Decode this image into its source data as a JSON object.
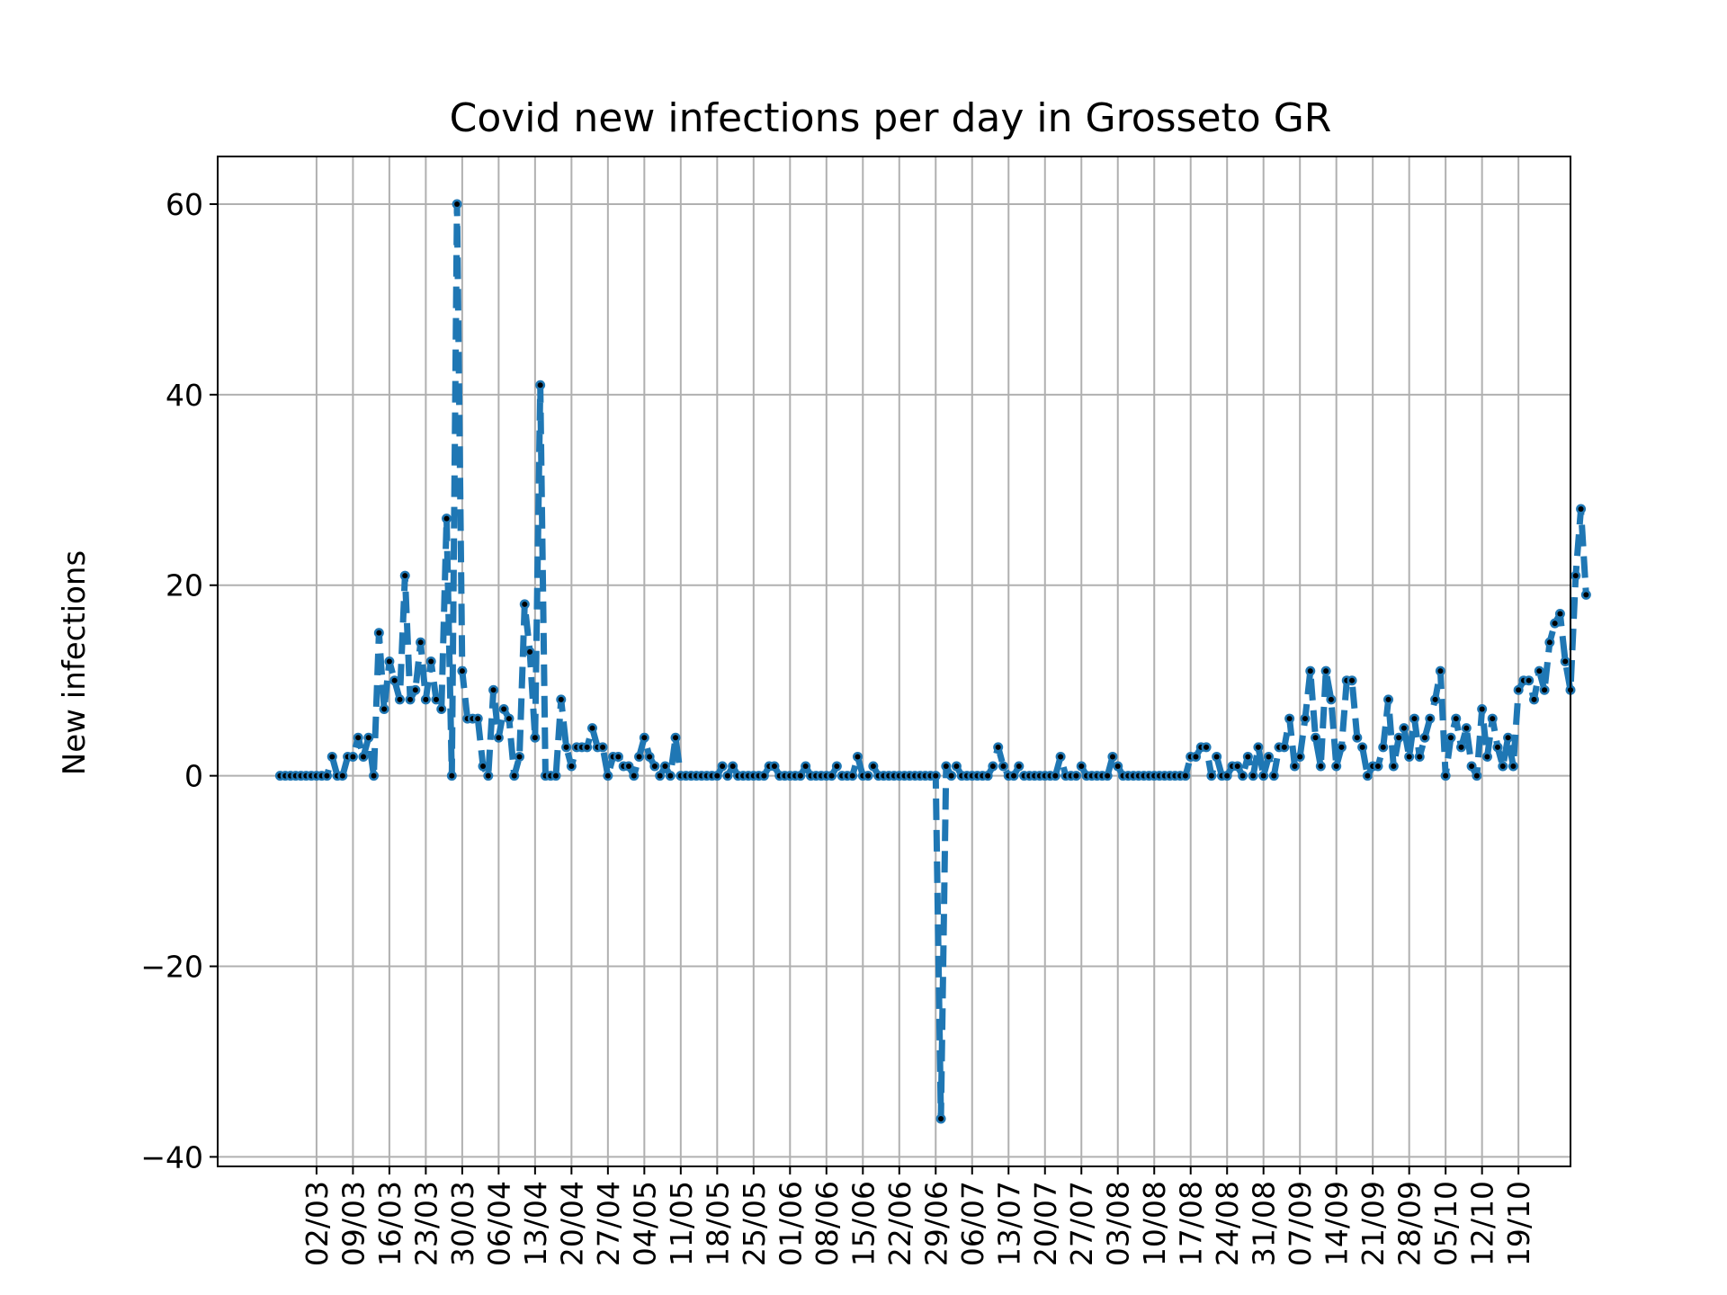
{
  "chart_data": {
    "type": "line",
    "title": "Covid new infections per day in Grosseto GR",
    "xlabel": "",
    "ylabel": "New infections",
    "ylim": [
      -41,
      65
    ],
    "y_ticks": [
      -40,
      -20,
      0,
      20,
      40,
      60
    ],
    "y_tick_labels": [
      "−40",
      "−20",
      "0",
      "20",
      "40",
      "60"
    ],
    "x_tick_labels": [
      "02/03",
      "09/03",
      "16/03",
      "23/03",
      "30/03",
      "06/04",
      "13/04",
      "20/04",
      "27/04",
      "04/05",
      "11/05",
      "18/05",
      "25/05",
      "01/06",
      "08/06",
      "15/06",
      "22/06",
      "29/06",
      "06/07",
      "13/07",
      "20/07",
      "27/07",
      "03/08",
      "10/08",
      "17/08",
      "24/08",
      "31/08",
      "07/09",
      "14/09",
      "21/09",
      "28/09",
      "05/10",
      "12/10",
      "19/10"
    ],
    "x_tick_dates": [
      "2020-03-02",
      "2020-03-09",
      "2020-03-16",
      "2020-03-23",
      "2020-03-30",
      "2020-04-06",
      "2020-04-13",
      "2020-04-20",
      "2020-04-27",
      "2020-05-04",
      "2020-05-11",
      "2020-05-18",
      "2020-05-25",
      "2020-06-01",
      "2020-06-08",
      "2020-06-15",
      "2020-06-22",
      "2020-06-29",
      "2020-07-06",
      "2020-07-13",
      "2020-07-20",
      "2020-07-27",
      "2020-08-03",
      "2020-08-10",
      "2020-08-17",
      "2020-08-24",
      "2020-08-31",
      "2020-09-07",
      "2020-09-14",
      "2020-09-21",
      "2020-09-28",
      "2020-10-05",
      "2020-10-12",
      "2020-10-19"
    ],
    "x_range": [
      "2020-02-12",
      "2020-10-29"
    ],
    "x_start": "2020-02-24",
    "grid": true,
    "series": [
      {
        "name": "",
        "color": "#1f77b4",
        "line_style": "dashed",
        "marker_color": "#000000",
        "values": [
          0,
          0,
          0,
          0,
          0,
          0,
          0,
          0,
          0,
          0,
          2,
          0,
          0,
          2,
          2,
          4,
          2,
          4,
          0,
          15,
          7,
          12,
          10,
          8,
          21,
          8,
          9,
          14,
          8,
          12,
          8,
          7,
          27,
          0,
          60,
          11,
          6,
          6,
          6,
          1,
          0,
          9,
          4,
          7,
          6,
          0,
          2,
          18,
          13,
          4,
          41,
          0,
          0,
          0,
          8,
          3,
          1,
          3,
          3,
          3,
          5,
          3,
          3,
          0,
          2,
          2,
          1,
          1,
          0,
          2,
          4,
          2,
          1,
          0,
          1,
          0,
          4,
          0,
          0,
          0,
          0,
          0,
          0,
          0,
          0,
          1,
          0,
          1,
          0,
          0,
          0,
          0,
          0,
          0,
          1,
          1,
          0,
          0,
          0,
          0,
          0,
          1,
          0,
          0,
          0,
          0,
          0,
          1,
          0,
          0,
          0,
          2,
          0,
          0,
          1,
          0,
          0,
          0,
          0,
          0,
          0,
          0,
          0,
          0,
          0,
          0,
          0,
          -36,
          1,
          0,
          1,
          0,
          0,
          0,
          0,
          0,
          0,
          1,
          3,
          1,
          0,
          0,
          1,
          0,
          0,
          0,
          0,
          0,
          0,
          0,
          2,
          0,
          0,
          0,
          1,
          0,
          0,
          0,
          0,
          0,
          2,
          1,
          0,
          0,
          0,
          0,
          0,
          0,
          0,
          0,
          0,
          0,
          0,
          0,
          0,
          2,
          2,
          3,
          3,
          0,
          2,
          0,
          0,
          1,
          1,
          0,
          2,
          0,
          3,
          0,
          2,
          0,
          3,
          3,
          6,
          1,
          2,
          6,
          11,
          4,
          1,
          11,
          8,
          1,
          3,
          10,
          10,
          4,
          3,
          0,
          1,
          1,
          3,
          8,
          1,
          4,
          5,
          2,
          6,
          2,
          4,
          6,
          8,
          11,
          0,
          4,
          6,
          3,
          5,
          1,
          0,
          7,
          2,
          6,
          3,
          1,
          4,
          1,
          9,
          10,
          10,
          8,
          11,
          9,
          14,
          16,
          17,
          12,
          9,
          21,
          28,
          19
        ]
      }
    ]
  }
}
